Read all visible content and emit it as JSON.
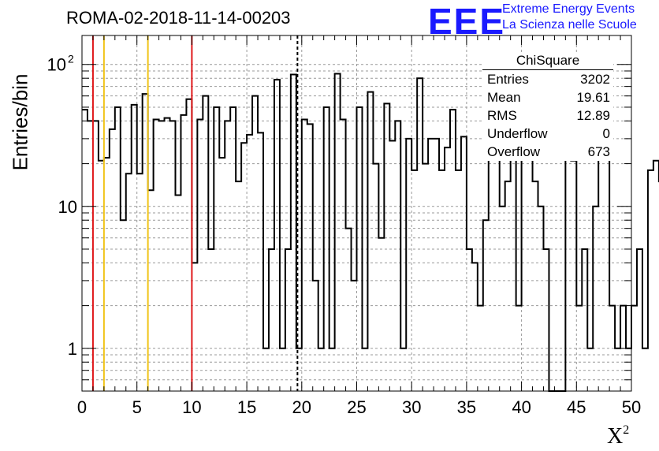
{
  "header": {
    "title": "ROMA-02-2018-11-14-00203",
    "logo_text": "EEE",
    "logo_line1": "Extreme Energy Events",
    "logo_line2": "La Scienza nelle Scuole"
  },
  "stats_box": {
    "title": "ChiSquare",
    "rows": [
      {
        "label": "Entries",
        "value": "3202"
      },
      {
        "label": "Mean",
        "value": "19.61"
      },
      {
        "label": "RMS",
        "value": "12.89"
      },
      {
        "label": "Underflow",
        "value": "0"
      },
      {
        "label": "Overflow",
        "value": "673"
      }
    ]
  },
  "chart_data": {
    "type": "histogram",
    "title": "ROMA-02-2018-11-14-00203",
    "xlabel": "X",
    "xlabel_superscript": "2",
    "ylabel": "Entries/bin",
    "xlim": [
      0,
      50
    ],
    "ylim": [
      0.5,
      160
    ],
    "y_scale": "log",
    "grid": true,
    "bin_width": 0.5,
    "x_ticks": [
      "0",
      "5",
      "10",
      "15",
      "20",
      "25",
      "30",
      "35",
      "40",
      "45",
      "50"
    ],
    "y_ticks": [
      {
        "value": 1,
        "label": "1"
      },
      {
        "value": 10,
        "label": "10"
      },
      {
        "value": 100,
        "label": "10",
        "exp": "2"
      }
    ],
    "values": [
      48,
      40,
      40,
      21,
      22,
      35,
      50,
      8,
      17,
      52,
      17,
      62,
      13,
      41,
      40,
      42,
      40,
      12,
      44,
      57,
      4,
      41,
      60,
      5,
      50,
      22,
      40,
      50,
      15,
      28,
      32,
      60,
      33,
      1,
      5,
      78,
      1,
      5,
      85,
      1,
      41,
      38,
      3,
      1,
      50,
      1,
      86,
      41,
      7,
      3,
      50,
      1,
      64,
      20,
      6,
      53,
      29,
      40,
      1,
      30,
      18,
      80,
      20,
      30,
      30,
      18,
      26,
      48,
      18,
      31,
      5,
      4,
      2,
      8,
      23,
      30,
      10,
      15,
      60,
      2,
      35,
      40,
      15,
      10,
      5,
      0,
      0,
      0,
      62,
      21,
      2,
      5,
      1,
      10,
      53,
      40,
      2,
      1,
      2,
      1,
      2,
      5,
      1,
      18,
      21,
      15,
      2,
      25,
      18,
      20,
      1,
      53,
      4,
      8,
      9,
      12,
      60,
      8,
      17,
      10,
      13,
      20,
      60,
      6,
      5,
      9,
      10,
      3,
      1,
      1,
      12,
      12,
      24,
      0,
      16,
      0,
      0,
      5,
      0,
      0,
      0,
      4,
      4,
      4,
      2,
      10,
      9,
      7,
      20,
      30,
      26,
      10,
      4,
      12,
      15,
      19,
      15,
      20,
      1,
      21,
      6,
      1,
      20,
      10,
      9,
      8,
      20,
      35,
      10,
      9,
      1,
      10,
      9,
      10,
      1,
      8,
      12,
      20,
      6,
      10,
      12,
      18,
      7,
      20,
      15,
      19,
      8,
      20,
      1,
      6,
      12,
      15,
      10,
      20,
      9,
      8,
      9,
      10
    ],
    "reference_lines": [
      {
        "x": 1,
        "color": "#e0191b",
        "style": "solid"
      },
      {
        "x": 2,
        "color": "#f0c419",
        "style": "solid"
      },
      {
        "x": 6,
        "color": "#f0c419",
        "style": "solid"
      },
      {
        "x": 10,
        "color": "#e0191b",
        "style": "solid"
      },
      {
        "x": 19.61,
        "color": "#000000",
        "style": "dashed"
      }
    ]
  }
}
